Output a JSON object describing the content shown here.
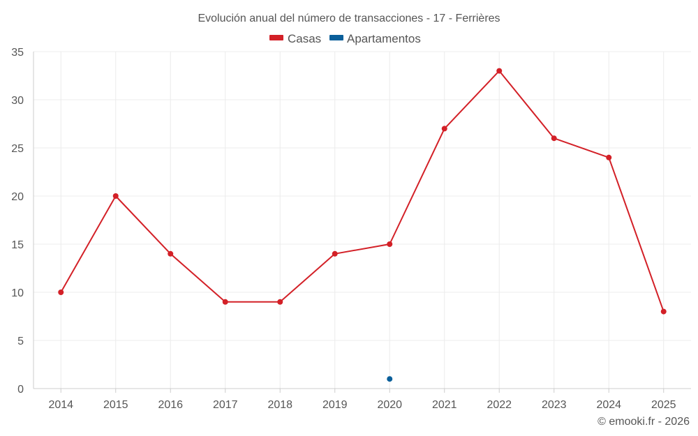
{
  "chart_data": {
    "type": "line",
    "title": "Evolución anual del número de transacciones - 17 - Ferrières",
    "categories": [
      "2014",
      "2015",
      "2016",
      "2017",
      "2018",
      "2019",
      "2020",
      "2021",
      "2022",
      "2023",
      "2024",
      "2025"
    ],
    "series": [
      {
        "name": "Casas",
        "color": "#d32027",
        "values": [
          10,
          20,
          14,
          9,
          9,
          14,
          15,
          27,
          33,
          26,
          24,
          8
        ]
      },
      {
        "name": "Apartamentos",
        "color": "#0a5f9a",
        "values": [
          null,
          null,
          null,
          null,
          null,
          null,
          1,
          null,
          null,
          null,
          null,
          null
        ]
      }
    ],
    "ylim": [
      0,
      35
    ],
    "yticks": [
      0,
      5,
      10,
      15,
      20,
      25,
      30,
      35
    ],
    "xlabel": "",
    "ylabel": "",
    "grid": true,
    "legend": "top-center"
  },
  "credit": "© emooki.fr - 2026"
}
